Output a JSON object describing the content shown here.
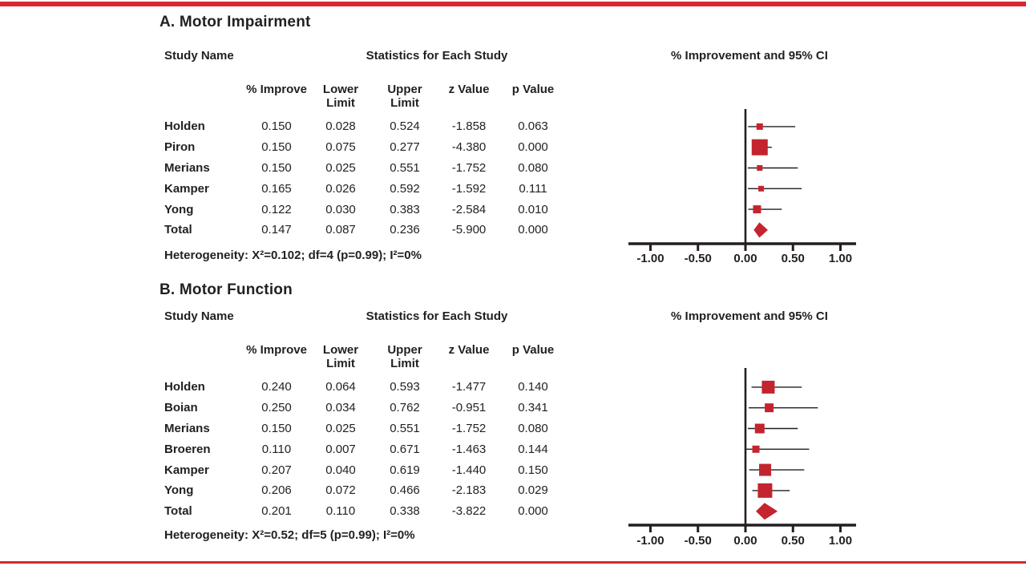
{
  "figure": {
    "top_border_color": "#D8272E",
    "bottom_border_color": "#D8272E",
    "marker_color": "#C3242E",
    "ink_color": "#231F20"
  },
  "chart_data": [
    {
      "type": "forest",
      "title": "A. Motor Impairment",
      "headers": {
        "study": "Study Name",
        "stats": "Statistics for Each Study",
        "plot": "% Improvement and 95% CI"
      },
      "columns": [
        "% Improve",
        "Lower\nLimit",
        "Upper\nLimit",
        "z Value",
        "p Value"
      ],
      "studies": [
        {
          "name": "Holden",
          "improve": "0.150",
          "lower": "0.028",
          "upper": "0.524",
          "z": "-1.858",
          "p": "0.063",
          "marker": 8
        },
        {
          "name": "Piron",
          "improve": "0.150",
          "lower": "0.075",
          "upper": "0.277",
          "z": "-4.380",
          "p": "0.000",
          "marker": 20
        },
        {
          "name": "Merians",
          "improve": "0.150",
          "lower": "0.025",
          "upper": "0.551",
          "z": "-1.752",
          "p": "0.080",
          "marker": 7
        },
        {
          "name": "Kamper",
          "improve": "0.165",
          "lower": "0.026",
          "upper": "0.592",
          "z": "-1.592",
          "p": "0.111",
          "marker": 7
        },
        {
          "name": "Yong",
          "improve": "0.122",
          "lower": "0.030",
          "upper": "0.383",
          "z": "-2.584",
          "p": "0.010",
          "marker": 10
        }
      ],
      "total": {
        "name": "Total",
        "improve": "0.147",
        "lower": "0.087",
        "upper": "0.236",
        "z": "-5.900",
        "p": "0.000"
      },
      "heterogeneity": "Heterogeneity: X²=0.102; df=4 (p=0.99); I²=0%",
      "axis": {
        "xlim": [
          -1.22,
          1.16
        ],
        "tick_values": [
          -1,
          -0.5,
          0,
          0.5,
          1
        ],
        "tick_labels": [
          "-1.00",
          "-0.50",
          "0.00",
          "0.50",
          "1.00"
        ]
      }
    },
    {
      "type": "forest",
      "title": "B. Motor Function",
      "headers": {
        "study": "Study Name",
        "stats": "Statistics for Each Study",
        "plot": "% Improvement and 95% CI"
      },
      "columns": [
        "% Improve",
        "Lower\nLimit",
        "Upper\nLimit",
        "z Value",
        "p Value"
      ],
      "studies": [
        {
          "name": "Holden",
          "improve": "0.240",
          "lower": "0.064",
          "upper": "0.593",
          "z": "-1.477",
          "p": "0.140",
          "marker": 16
        },
        {
          "name": "Boian",
          "improve": "0.250",
          "lower": "0.034",
          "upper": "0.762",
          "z": "-0.951",
          "p": "0.341",
          "marker": 11
        },
        {
          "name": "Merians",
          "improve": "0.150",
          "lower": "0.025",
          "upper": "0.551",
          "z": "-1.752",
          "p": "0.080",
          "marker": 12
        },
        {
          "name": "Broeren",
          "improve": "0.110",
          "lower": "0.007",
          "upper": "0.671",
          "z": "-1.463",
          "p": "0.144",
          "marker": 9
        },
        {
          "name": "Kamper",
          "improve": "0.207",
          "lower": "0.040",
          "upper": "0.619",
          "z": "-1.440",
          "p": "0.150",
          "marker": 15
        },
        {
          "name": "Yong",
          "improve": "0.206",
          "lower": "0.072",
          "upper": "0.466",
          "z": "-2.183",
          "p": "0.029",
          "marker": 18
        }
      ],
      "total": {
        "name": "Total",
        "improve": "0.201",
        "lower": "0.110",
        "upper": "0.338",
        "z": "-3.822",
        "p": "0.000"
      },
      "heterogeneity": "Heterogeneity: X²=0.52; df=5 (p=0.99); I²=0%",
      "axis": {
        "xlim": [
          -1.22,
          1.16
        ],
        "tick_values": [
          -1,
          -0.5,
          0,
          0.5,
          1
        ],
        "tick_labels": [
          "-1.00",
          "-0.50",
          "0.00",
          "0.50",
          "1.00"
        ]
      }
    }
  ]
}
